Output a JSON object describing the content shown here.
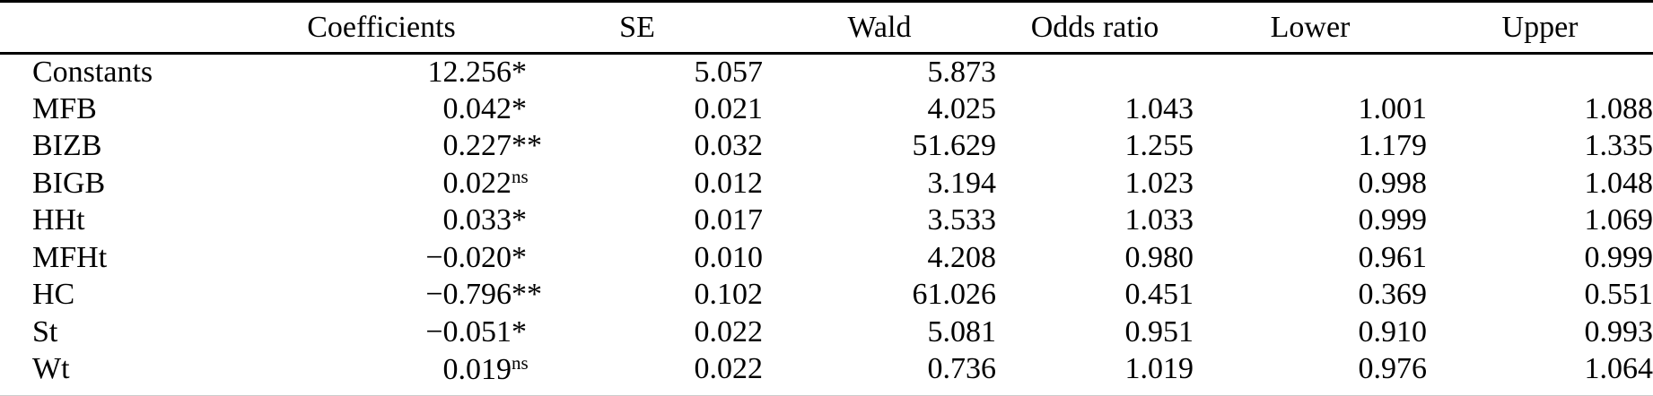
{
  "table": {
    "columns": [
      {
        "key": "label",
        "label": ""
      },
      {
        "key": "coefficients",
        "label": "Coefficients"
      },
      {
        "key": "se",
        "label": "SE"
      },
      {
        "key": "wald",
        "label": "Wald"
      },
      {
        "key": "odds",
        "label": "Odds ratio"
      },
      {
        "key": "lower",
        "label": "Lower"
      },
      {
        "key": "upper",
        "label": "Upper"
      }
    ],
    "rows": [
      {
        "label": "Constants",
        "coefficients": {
          "num": "12.256",
          "suffix": "*",
          "sup": false
        },
        "se": "5.057",
        "wald": "5.873",
        "odds": "",
        "lower": "",
        "upper": ""
      },
      {
        "label": "MFB",
        "coefficients": {
          "num": "0.042",
          "suffix": "*",
          "sup": false
        },
        "se": "0.021",
        "wald": "4.025",
        "odds": "1.043",
        "lower": "1.001",
        "upper": "1.088"
      },
      {
        "label": "BIZB",
        "coefficients": {
          "num": "0.227",
          "suffix": "**",
          "sup": false
        },
        "se": "0.032",
        "wald": "51.629",
        "odds": "1.255",
        "lower": "1.179",
        "upper": "1.335"
      },
      {
        "label": "BIGB",
        "coefficients": {
          "num": "0.022",
          "suffix": "ns",
          "sup": true
        },
        "se": "0.012",
        "wald": "3.194",
        "odds": "1.023",
        "lower": "0.998",
        "upper": "1.048"
      },
      {
        "label": "HHt",
        "coefficients": {
          "num": "0.033",
          "suffix": "*",
          "sup": false
        },
        "se": "0.017",
        "wald": "3.533",
        "odds": "1.033",
        "lower": "0.999",
        "upper": "1.069"
      },
      {
        "label": "MFHt",
        "coefficients": {
          "num": "−0.020",
          "suffix": "*",
          "sup": false
        },
        "se": "0.010",
        "wald": "4.208",
        "odds": "0.980",
        "lower": "0.961",
        "upper": "0.999"
      },
      {
        "label": "HC",
        "coefficients": {
          "num": "−0.796",
          "suffix": "**",
          "sup": false
        },
        "se": "0.102",
        "wald": "61.026",
        "odds": "0.451",
        "lower": "0.369",
        "upper": "0.551"
      },
      {
        "label": "St",
        "coefficients": {
          "num": "−0.051",
          "suffix": "*",
          "sup": false
        },
        "se": "0.022",
        "wald": "5.081",
        "odds": "0.951",
        "lower": "0.910",
        "upper": "0.993"
      },
      {
        "label": "Wt",
        "coefficients": {
          "num": "0.019",
          "suffix": "ns",
          "sup": true
        },
        "se": "0.022",
        "wald": "0.736",
        "odds": "1.019",
        "lower": "0.976",
        "upper": "1.064"
      }
    ]
  },
  "colors": {
    "background": "#ffffff",
    "text": "#000000",
    "rule": "#000000"
  }
}
